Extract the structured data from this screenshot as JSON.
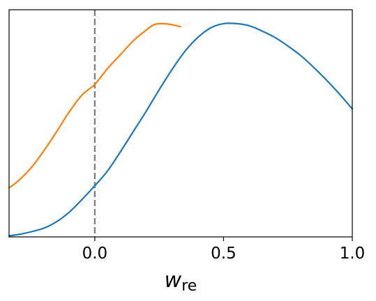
{
  "chart_data": {
    "type": "line",
    "title": "",
    "xlabel": {
      "main": "w",
      "subscript": "re"
    },
    "ylabel": "",
    "xlim": [
      -0.333,
      1.0
    ],
    "ylim": [
      0,
      1.065
    ],
    "xticks": [
      {
        "value": 0.0,
        "label": "0.0"
      },
      {
        "value": 0.5,
        "label": "0.5"
      },
      {
        "value": 1.0,
        "label": "1.0"
      }
    ],
    "yticks": [],
    "grid": false,
    "legend": "none",
    "reference_lines": [
      {
        "orientation": "vertical",
        "x": 0.0,
        "style": "dashed",
        "color": "#808080"
      }
    ],
    "series": [
      {
        "color": "#1f77b4",
        "x": [
          -0.333,
          -0.28,
          -0.2,
          -0.15,
          -0.1,
          -0.05,
          0.0,
          0.05,
          0.1,
          0.15,
          0.2,
          0.25,
          0.3,
          0.35,
          0.4,
          0.45,
          0.5,
          0.55,
          0.6,
          0.65,
          0.7,
          0.75,
          0.8,
          0.85,
          0.9,
          0.95,
          1.0
        ],
        "y": [
          0.005,
          0.015,
          0.04,
          0.07,
          0.115,
          0.175,
          0.24,
          0.31,
          0.4,
          0.495,
          0.59,
          0.69,
          0.785,
          0.87,
          0.935,
          0.98,
          1.0,
          1.0,
          0.99,
          0.965,
          0.935,
          0.895,
          0.85,
          0.795,
          0.735,
          0.67,
          0.6
        ]
      },
      {
        "color": "#ff7f0e",
        "x": [
          -0.333,
          -0.3,
          -0.25,
          -0.2,
          -0.15,
          -0.1,
          -0.05,
          0.0,
          0.05,
          0.1,
          0.15,
          0.2,
          0.23,
          0.26,
          0.3,
          0.333
        ],
        "y": [
          0.23,
          0.26,
          0.32,
          0.4,
          0.49,
          0.585,
          0.665,
          0.715,
          0.79,
          0.855,
          0.92,
          0.97,
          0.995,
          1.0,
          0.995,
          0.985
        ]
      }
    ]
  }
}
